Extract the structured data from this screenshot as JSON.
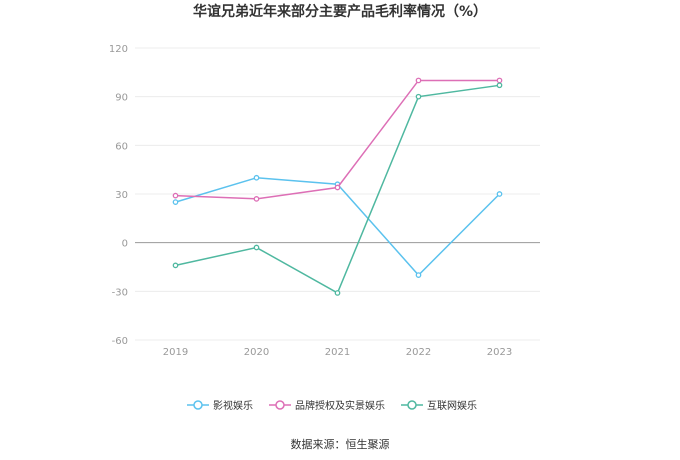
{
  "chart_data": {
    "type": "line",
    "title": "华谊兄弟近年来部分主要产品毛利率情况（%）",
    "xlabel": "",
    "ylabel": "",
    "categories": [
      "2019",
      "2020",
      "2021",
      "2022",
      "2023"
    ],
    "ylim": [
      -60,
      120
    ],
    "yticks": [
      120,
      90,
      60,
      30,
      0,
      -30,
      -60
    ],
    "grid": true,
    "legend_position": "bottom-center",
    "series": [
      {
        "name": "影视娱乐",
        "color": "#5bc2ee",
        "values": [
          25,
          40,
          36,
          -20,
          30
        ]
      },
      {
        "name": "品牌授权及实景娱乐",
        "color": "#dd6fb6",
        "values": [
          29,
          27,
          34,
          100,
          100
        ]
      },
      {
        "name": "互联网娱乐",
        "color": "#4fb8a0",
        "values": [
          -14,
          -3,
          -31,
          90,
          97
        ]
      }
    ],
    "source": "数据来源：恒生聚源"
  }
}
